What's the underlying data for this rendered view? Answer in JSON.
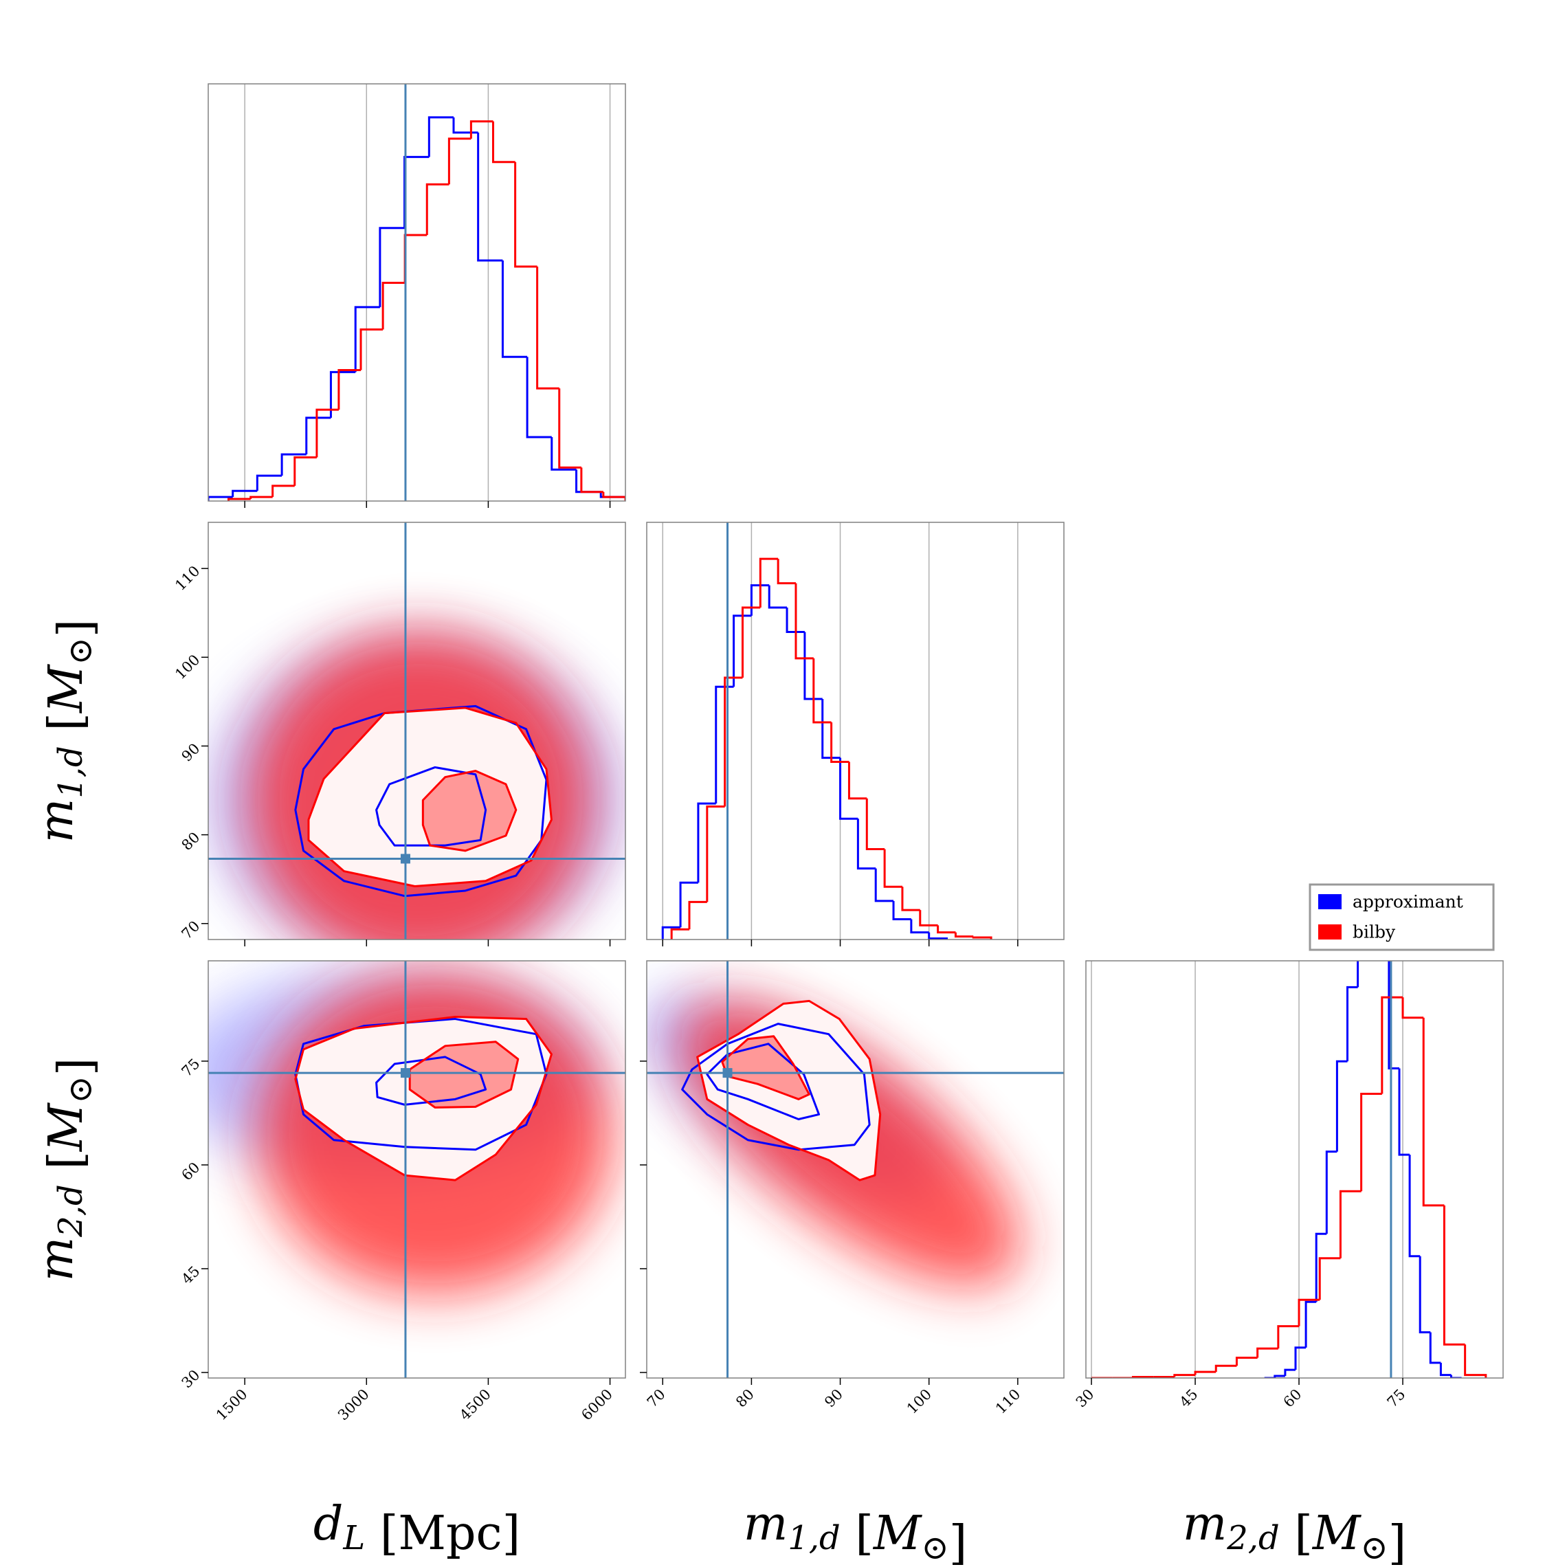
{
  "chart_data": {
    "type": "corner",
    "truth_color": "#4682b4",
    "grid": true,
    "series": [
      {
        "name": "approximant",
        "color": "#0000ff"
      },
      {
        "name": "bilby",
        "color": "#ff0000"
      }
    ],
    "parameters": [
      {
        "label": [
          {
            "text": "d",
            "sub": "L",
            "italic": true
          },
          {
            "text": " [Mpc]"
          }
        ],
        "lim": [
          1050,
          6190
        ],
        "ticks": [
          1500,
          3000,
          4500,
          6000
        ],
        "truth": 3480,
        "hist_ylim": [
          0,
          411
        ],
        "hist": [
          {
            "bins": [
              1050,
              1352,
              1654,
              1957,
              2259,
              2561,
              2864,
              3166,
              3468,
              3771,
              4073,
              4375,
              4678,
              4980,
              5282,
              5585,
              5887,
              6190
            ],
            "counts": [
              4,
              10,
              25,
              46,
              82,
              127,
              191,
              269,
              339,
              378,
              363,
              237,
              142,
              63,
              31,
              9,
              4
            ]
          },
          {
            "bins": [
              1300,
              1572,
              1843,
              2115,
              2387,
              2658,
              2930,
              3202,
              3473,
              3745,
              4017,
              4288,
              4560,
              4832,
              5103,
              5375,
              5647,
              5918,
              6190
            ],
            "counts": [
              2,
              4,
              15,
              43,
              90,
              129,
              169,
              215,
              262,
              312,
              357,
              374,
              334,
              231,
              111,
              33,
              9,
              4
            ]
          }
        ]
      },
      {
        "label": [
          {
            "text": "m",
            "sub": "1,d",
            "italic": true
          },
          {
            "text": " ["
          },
          {
            "text": "M",
            "sub": "⊙",
            "italic": true
          },
          {
            "text": "]"
          }
        ],
        "lim": [
          68.2,
          115.2
        ],
        "ticks": [
          70,
          80,
          90,
          100,
          110
        ],
        "truth": 77.3,
        "hist_ylim": [
          0,
          411
        ],
        "hist": [
          {
            "bins": [
              70,
              72,
              74,
              76,
              78,
              80,
              82,
              84,
              86,
              88,
              90,
              92,
              94,
              96,
              98,
              100,
              102
            ],
            "counts": [
              12,
              56,
              134,
              249,
              319,
              349,
              327,
              303,
              237,
              179,
              119,
              70,
              38,
              20,
              7,
              1
            ]
          },
          {
            "bins": [
              71,
              73,
              75,
              77,
              79,
              81,
              83,
              85,
              87,
              89,
              91,
              93,
              95,
              97,
              99,
              101,
              103,
              105,
              107
            ],
            "counts": [
              10,
              37,
              131,
              258,
              327,
              375,
              351,
              277,
              214,
              175,
              139,
              89,
              52,
              29,
              14,
              7,
              3,
              2
            ]
          }
        ]
      },
      {
        "label": [
          {
            "text": "m",
            "sub": "2,d",
            "italic": true
          },
          {
            "text": " ["
          },
          {
            "text": "M",
            "sub": "⊙",
            "italic": true
          },
          {
            "text": "]"
          }
        ],
        "lim": [
          29.2,
          89.5
        ],
        "ticks": [
          30,
          45,
          60,
          75
        ],
        "truth": 73.3,
        "hist_ylim": [
          0,
          411
        ],
        "hist": [
          {
            "bins": [
              55,
              56.5,
              58,
              59.5,
              61,
              62.5,
              64,
              65.5,
              67,
              68.5,
              70,
              71.5,
              73,
              74.5,
              76,
              77.5,
              79,
              80.5,
              82,
              83.5
            ],
            "counts": [
              0,
              2,
              8,
              30,
              75,
              142,
              223,
              312,
              385,
              460,
              460,
              420,
              305,
              220,
              120,
              45,
              15,
              3,
              0
            ]
          },
          {
            "bins": [
              30,
              33,
              36,
              39,
              42,
              45,
              48,
              51,
              54,
              57,
              60,
              63,
              66,
              69,
              72,
              75,
              78,
              81,
              84,
              87
            ],
            "counts": [
              0,
              0,
              1,
              1,
              3,
              6,
              12,
              20,
              29,
              51,
              77,
              118,
              184,
              280,
              375,
              355,
              170,
              33,
              3
            ]
          }
        ]
      }
    ],
    "contours": [
      {
        "series": [
          {
            "levels": [
              {
                "x": [
                  2124,
                  2223,
                  2597,
                  3221,
                  4343,
                  4967,
                  5216,
                  5154,
                  4842,
                  4218,
                  3470,
                  2722,
                  2223
                ],
                "y": [
                  82.8,
                  87.4,
                  91.9,
                  93.7,
                  94.5,
                  91.9,
                  86.2,
                  79.4,
                  75.4,
                  73.7,
                  73.1,
                  74.8,
                  78.2
                ]
              },
              {
                "x": [
                  3121,
                  3283,
                  3844,
                  4343,
                  4468,
                  4405,
                  3969,
                  3346,
                  3159
                ],
                "y": [
                  82.8,
                  85.7,
                  87.6,
                  86.8,
                  82.8,
                  79.4,
                  78.8,
                  78.8,
                  81.1
                ]
              }
            ]
          },
          {
            "levels": [
              {
                "x": [
                  2286,
                  2473,
                  3221,
                  4218,
                  4842,
                  5216,
                  5279,
                  5029,
                  4468,
                  3595,
                  2722,
                  2286
                ],
                "y": [
                  81.7,
                  86.3,
                  93.7,
                  94.3,
                  92.6,
                  87.4,
                  81.7,
                  77.1,
                  74.8,
                  74.2,
                  75.9,
                  79.4
                ]
              },
              {
                "x": [
                  3695,
                  3969,
                  4343,
                  4717,
                  4842,
                  4717,
                  4218,
                  3782,
                  3695
                ],
                "y": [
                  83.9,
                  86.5,
                  87.2,
                  85.7,
                  82.8,
                  79.9,
                  78.2,
                  78.8,
                  81.1
                ]
              }
            ]
          }
        ]
      },
      {
        "series": [
          {
            "levels": [
              {
                "x": [
                  2124,
                  2223,
                  2971,
                  4093,
                  5091,
                  5216,
                  4967,
                  4343,
                  3470,
                  2597,
                  2223
                ],
                "y": [
                  73.1,
                  77.5,
                  80.1,
                  81.1,
                  78.9,
                  73.1,
                  65.8,
                  62.2,
                  62.6,
                  63.6,
                  67.3
                ]
              },
              {
                "x": [
                  3121,
                  3346,
                  3969,
                  4405,
                  4468,
                  4093,
                  3470,
                  3134
                ],
                "y": [
                  71.9,
                  74.6,
                  75.6,
                  73.1,
                  70.9,
                  69.5,
                  68.7,
                  69.8
                ]
              }
            ]
          },
          {
            "levels": [
              {
                "x": [
                  2124,
                  2223,
                  2847,
                  4093,
                  4967,
                  5279,
                  5091,
                  4593,
                  4093,
                  3470,
                  2722,
                  2223
                ],
                "y": [
                  72.4,
                  76.7,
                  79.7,
                  81.4,
                  81.1,
                  76.0,
                  68.7,
                  61.5,
                  57.8,
                  58.5,
                  63.6,
                  68.0
                ]
              },
              {
                "x": [
                  3533,
                  3969,
                  4592,
                  4867,
                  4780,
                  4343,
                  3844,
                  3533
                ],
                "y": [
                  73.8,
                  77.2,
                  77.8,
                  75.3,
                  70.9,
                  68.4,
                  68.3,
                  70.9
                ]
              }
            ]
          }
        ]
      },
      {
        "series": [
          {
            "levels": [
              {
                "x": [
                  72.2,
                  73.3,
                  77.3,
                  83.0,
                  88.7,
                  92.7,
                  93.3,
                  91.6,
                  85.3,
                  79.6,
                  75.0
                ],
                "y": [
                  70.9,
                  73.8,
                  77.5,
                  80.4,
                  78.9,
                  73.1,
                  65.8,
                  62.9,
                  62.2,
                  63.6,
                  67.3
                ]
              },
              {
                "x": [
                  75.0,
                  77.3,
                  81.9,
                  85.9,
                  87.6,
                  85.3,
                  79.6,
                  76.2
                ],
                "y": [
                  73.1,
                  76.0,
                  77.5,
                  73.1,
                  67.3,
                  66.6,
                  69.5,
                  70.9
                ]
              }
            ]
          },
          {
            "levels": [
              {
                "x": [
                  73.9,
                  78.5,
                  83.6,
                  86.5,
                  89.9,
                  93.3,
                  94.5,
                  93.9,
                  92.2,
                  88.7,
                  84.2,
                  79.6,
                  75.0
                ],
                "y": [
                  75.6,
                  78.9,
                  83.3,
                  83.7,
                  81.1,
                  75.3,
                  67.3,
                  58.5,
                  57.8,
                  60.7,
                  62.9,
                  65.8,
                  69.5
                ]
              },
              {
                "x": [
                  76.7,
                  79.6,
                  82.5,
                  84.7,
                  86.5,
                  85.3,
                  80.7,
                  77.3
                ],
                "y": [
                  74.9,
                  78.2,
                  78.6,
                  74.6,
                  70.2,
                  69.5,
                  71.7,
                  72.8
                ]
              }
            ]
          }
        ]
      }
    ]
  }
}
